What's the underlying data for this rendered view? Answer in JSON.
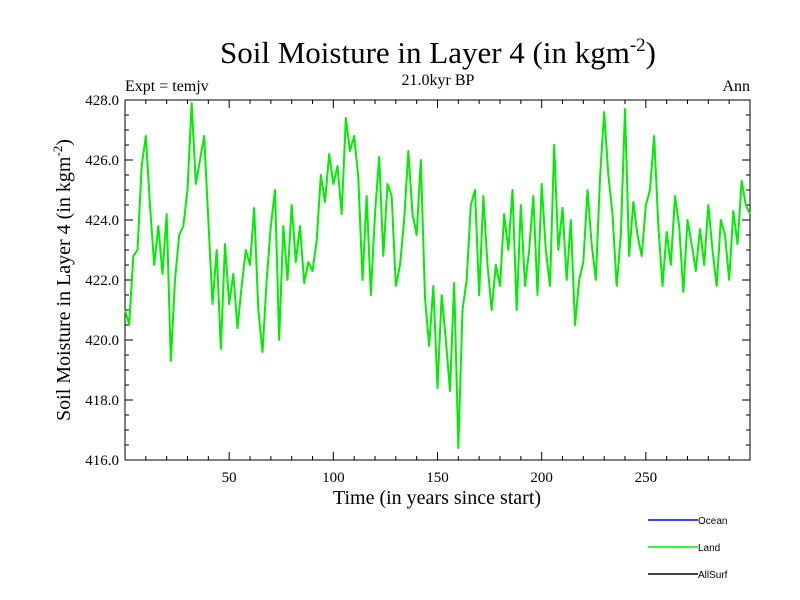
{
  "chart_data": {
    "type": "line",
    "title": "Soil Moisture in Layer 4 (in kgm",
    "title_sup": "-2",
    "title_close": ")",
    "subtitle": "21.0kyr BP",
    "left_label": "Expt = temjv",
    "right_label": "Ann",
    "xlabel": "Time (in years since start)",
    "ylabel": "Soil Moisture in Layer 4 (in kgm",
    "ylabel_sup": "-2",
    "ylabel_close": ")",
    "xlim": [
      0,
      300
    ],
    "ylim": [
      416.0,
      428.0
    ],
    "x_ticks": [
      50,
      100,
      150,
      200,
      250
    ],
    "x_tick_labels": [
      "50",
      "100",
      "150",
      "200",
      "250"
    ],
    "y_ticks": [
      416.0,
      418.0,
      420.0,
      422.0,
      424.0,
      426.0,
      428.0
    ],
    "y_tick_labels": [
      "416.0",
      "418.0",
      "420.0",
      "422.0",
      "424.0",
      "426.0",
      "428.0"
    ],
    "series": [
      {
        "name": "Land",
        "color": "#00ee00",
        "x": [
          0,
          2,
          4,
          6,
          8,
          10,
          12,
          14,
          16,
          18,
          20,
          22,
          24,
          26,
          28,
          30,
          32,
          34,
          36,
          38,
          40,
          42,
          44,
          46,
          48,
          50,
          52,
          54,
          56,
          58,
          60,
          62,
          64,
          66,
          68,
          70,
          72,
          74,
          76,
          78,
          80,
          82,
          84,
          86,
          88,
          90,
          92,
          94,
          96,
          98,
          100,
          102,
          104,
          106,
          108,
          110,
          112,
          114,
          116,
          118,
          120,
          122,
          124,
          126,
          128,
          130,
          132,
          134,
          136,
          138,
          140,
          142,
          144,
          146,
          148,
          150,
          152,
          154,
          156,
          158,
          160,
          162,
          164,
          166,
          168,
          170,
          172,
          174,
          176,
          178,
          180,
          182,
          184,
          186,
          188,
          190,
          192,
          194,
          196,
          198,
          200,
          202,
          204,
          206,
          208,
          210,
          212,
          214,
          216,
          218,
          220,
          222,
          224,
          226,
          228,
          230,
          232,
          234,
          236,
          238,
          240,
          242,
          244,
          246,
          248,
          250,
          252,
          254,
          256,
          258,
          260,
          262,
          264,
          266,
          268,
          270,
          272,
          274,
          276,
          278,
          280,
          282,
          284,
          286,
          288,
          290,
          292,
          294,
          296,
          298,
          300
        ],
        "values": [
          421.0,
          420.5,
          422.8,
          423.0,
          425.8,
          426.8,
          424.5,
          422.5,
          423.8,
          422.2,
          424.2,
          419.3,
          422.0,
          423.5,
          423.8,
          425.0,
          427.9,
          425.2,
          426.0,
          426.8,
          424.0,
          421.2,
          423.0,
          419.7,
          423.2,
          421.2,
          422.2,
          420.4,
          421.8,
          423.0,
          422.5,
          424.4,
          421.0,
          419.6,
          422.0,
          423.8,
          425.0,
          420.0,
          423.8,
          422.0,
          424.5,
          422.6,
          423.8,
          421.9,
          422.6,
          422.3,
          423.3,
          425.5,
          424.6,
          426.2,
          425.2,
          425.8,
          424.2,
          427.4,
          426.3,
          426.8,
          425.4,
          422.0,
          424.8,
          421.5,
          424.2,
          426.1,
          422.8,
          425.2,
          424.8,
          421.8,
          422.5,
          424.0,
          426.3,
          424.2,
          423.5,
          426.0,
          421.4,
          419.8,
          421.8,
          418.4,
          421.5,
          420.0,
          418.3,
          421.9,
          416.4,
          421.0,
          422.0,
          424.5,
          425.0,
          421.5,
          424.8,
          422.5,
          421.0,
          422.5,
          421.8,
          424.2,
          423.0,
          425.0,
          421.0,
          424.5,
          421.8,
          423.0,
          424.8,
          421.5,
          425.2,
          423.0,
          421.8,
          426.5,
          423.0,
          424.4,
          422.0,
          424.0,
          420.5,
          422.0,
          422.6,
          425.0,
          423.2,
          422.0,
          425.4,
          427.6,
          425.5,
          424.2,
          421.8,
          423.5,
          427.7,
          422.8,
          424.6,
          423.5,
          422.8,
          424.5,
          425.0,
          426.8,
          423.8,
          421.8,
          423.6,
          422.5,
          424.8,
          423.8,
          421.6,
          424.0,
          423.2,
          422.3,
          423.7,
          422.5,
          424.5,
          423.0,
          421.8,
          424.0,
          423.5,
          422.0,
          424.3,
          423.2,
          425.3,
          424.5,
          424.2
        ]
      },
      {
        "name": "Ocean",
        "color": "#0000ff",
        "x": [],
        "values": []
      },
      {
        "name": "AllSurf",
        "color": "#000000",
        "x": [],
        "values": []
      }
    ],
    "legend": [
      {
        "name": "Ocean",
        "color": "#0000ff"
      },
      {
        "name": "Land",
        "color": "#00ee00"
      },
      {
        "name": "AllSurf",
        "color": "#000000"
      }
    ],
    "legend_position": "bottom-right",
    "grid": false
  }
}
